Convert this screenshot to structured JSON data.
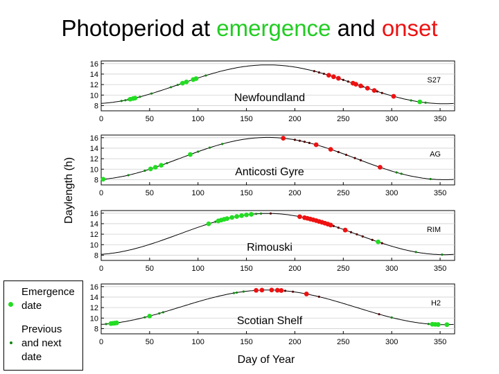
{
  "title": {
    "part1": "Photoperiod at ",
    "part2": "emergence",
    "part3": " and ",
    "part4": "onset",
    "color_emergence": "#22cc22",
    "color_onset": "#ee1111"
  },
  "legend": {
    "emergence_l1": "Emergence",
    "emergence_l2": "date",
    "prev_l1": "Previous",
    "prev_l2": "and next",
    "prev_l3": "date",
    "emergence_color": "#22dd22",
    "prev_color": "#118811"
  },
  "colors": {
    "emergence_green": "#22dd22",
    "onset_red": "#ee1111",
    "previous_next_green": "#118811",
    "previous_next_dark": "#550000",
    "curve": "#000000"
  },
  "chart_data": [
    {
      "type": "line",
      "panel_label": "Newfoundland",
      "code": "S27",
      "xlabel": "",
      "ylabel": "",
      "xlim": [
        0,
        365
      ],
      "ylim": [
        7,
        16.5
      ],
      "xticks": [
        0,
        50,
        100,
        150,
        200,
        250,
        300,
        350
      ],
      "yticks": [
        8,
        10,
        12,
        14,
        16
      ],
      "daylength_min": 8.35,
      "daylength_max": 15.75,
      "emergence_days": [
        30,
        33,
        35,
        84,
        88,
        95,
        98,
        329
      ],
      "onset_days": [
        235,
        240,
        245,
        260,
        263,
        268,
        275,
        282,
        302
      ],
      "previous_next_days": [
        21,
        25,
        28,
        40,
        52,
        72,
        79,
        108,
        220,
        225,
        230,
        250,
        255,
        270,
        285,
        290,
        320,
        335
      ]
    },
    {
      "type": "line",
      "panel_label": "Anticosti Gyre",
      "code": "AG",
      "xlabel": "",
      "ylabel": "",
      "xlim": [
        0,
        365
      ],
      "ylim": [
        7,
        16.5
      ],
      "xticks": [
        0,
        50,
        100,
        150,
        200,
        250,
        300,
        350
      ],
      "yticks": [
        8,
        10,
        12,
        14,
        16
      ],
      "daylength_min": 8.0,
      "daylength_max": 16.05,
      "emergence_days": [
        2,
        51,
        56,
        62,
        92
      ],
      "onset_days": [
        188,
        222,
        237,
        288
      ],
      "previous_next_days": [
        28,
        45,
        68,
        100,
        112,
        125,
        200,
        205,
        210,
        215,
        245,
        253,
        262,
        268,
        305,
        310,
        340
      ]
    },
    {
      "type": "line",
      "panel_label": "Rimouski",
      "code": "RIM",
      "xlabel": "",
      "ylabel": "Daylength (h)",
      "xlim": [
        0,
        365
      ],
      "ylim": [
        7,
        16.5
      ],
      "xticks": [
        0,
        50,
        100,
        150,
        200,
        250,
        300,
        350
      ],
      "yticks": [
        8,
        10,
        12,
        14,
        16
      ],
      "daylength_min": 8.1,
      "daylength_max": 15.95,
      "emergence_days": [
        111,
        121,
        124,
        127,
        130,
        135,
        140,
        145,
        150,
        155,
        286
      ],
      "onset_days": [
        205,
        210,
        213,
        216,
        219,
        222,
        225,
        228,
        231,
        234,
        237,
        252
      ],
      "previous_next_days": [
        118,
        160,
        165,
        175,
        240,
        245,
        258,
        264,
        270,
        280,
        290,
        325,
        352
      ]
    },
    {
      "type": "line",
      "panel_label": "Scotian Shelf",
      "code": "H2",
      "xlabel": "Day of Year",
      "ylabel": "",
      "xlim": [
        0,
        365
      ],
      "ylim": [
        7,
        16.5
      ],
      "xticks": [
        0,
        50,
        100,
        150,
        200,
        250,
        300,
        350
      ],
      "yticks": [
        8,
        10,
        12,
        14,
        16
      ],
      "daylength_min": 8.75,
      "daylength_max": 15.35,
      "emergence_days": [
        10,
        12,
        14,
        16,
        50,
        342,
        345,
        348,
        357
      ],
      "onset_days": [
        160,
        166,
        176,
        182,
        186,
        212
      ],
      "previous_next_days": [
        5,
        45,
        60,
        64,
        137,
        140,
        147,
        190,
        198,
        225,
        287,
        300,
        338
      ]
    }
  ]
}
